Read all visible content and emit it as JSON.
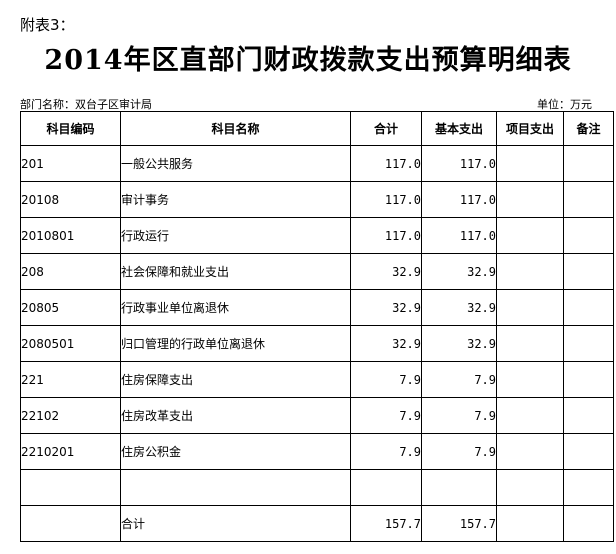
{
  "attachment_label": "附表3：",
  "title": "2014年区直部门财政拨款支出预算明细表",
  "department_label": "部门名称：双台子区审计局",
  "unit_label": "单位：万元",
  "headers": {
    "code": "科目编码",
    "name": "科目名称",
    "total": "合计",
    "basic": "基本支出",
    "project": "项目支出",
    "remark": "备注"
  },
  "rows": [
    {
      "code": "201",
      "name": "一般公共服务",
      "total": "117.0",
      "basic": "117.0",
      "project": "",
      "remark": ""
    },
    {
      "code": "20108",
      "name": "审计事务",
      "total": "117.0",
      "basic": "117.0",
      "project": "",
      "remark": ""
    },
    {
      "code": "2010801",
      "name": "行政运行",
      "total": "117.0",
      "basic": "117.0",
      "project": "",
      "remark": ""
    },
    {
      "code": "208",
      "name": "社会保障和就业支出",
      "total": "32.9",
      "basic": "32.9",
      "project": "",
      "remark": ""
    },
    {
      "code": "20805",
      "name": "行政事业单位离退休",
      "total": "32.9",
      "basic": "32.9",
      "project": "",
      "remark": ""
    },
    {
      "code": "2080501",
      "name": "归口管理的行政单位离退休",
      "total": "32.9",
      "basic": "32.9",
      "project": "",
      "remark": ""
    },
    {
      "code": "221",
      "name": "住房保障支出",
      "total": "7.9",
      "basic": "7.9",
      "project": "",
      "remark": ""
    },
    {
      "code": "22102",
      "name": "住房改革支出",
      "total": "7.9",
      "basic": "7.9",
      "project": "",
      "remark": ""
    },
    {
      "code": "2210201",
      "name": "住房公积金",
      "total": "7.9",
      "basic": "7.9",
      "project": "",
      "remark": ""
    },
    {
      "code": "",
      "name": "",
      "total": "",
      "basic": "",
      "project": "",
      "remark": ""
    }
  ],
  "total_row": {
    "label": "合计",
    "total": "157.7",
    "basic": "157.7",
    "project": "",
    "remark": ""
  }
}
